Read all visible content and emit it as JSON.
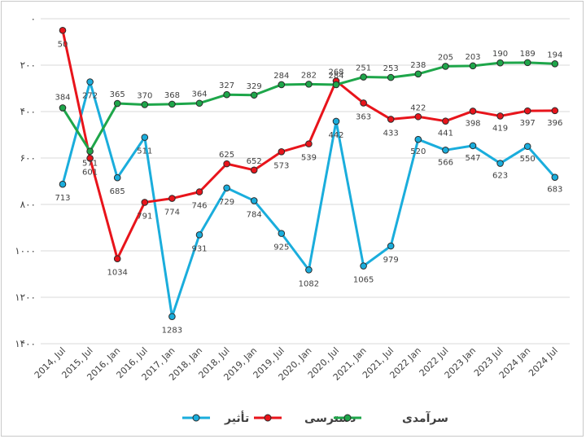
{
  "chart_data": {
    "type": "line",
    "title": "",
    "xlabel": "",
    "ylabel": "",
    "y_reversed": true,
    "ylim": [
      0,
      1400
    ],
    "yticks": [
      0,
      200,
      400,
      600,
      800,
      1000,
      1200,
      1400
    ],
    "ytick_labels": [
      "۰",
      "۲۰۰",
      "۴۰۰",
      "۶۰۰",
      "۸۰۰",
      "۱۰۰۰",
      "۱۲۰۰",
      "۱۴۰۰"
    ],
    "grid": true,
    "legend_position": "bottom",
    "categories": [
      "2014, Jul",
      "2015, Jul",
      "2016, Jan",
      "2016, Jul",
      "2017, Jan",
      "2018, Jan",
      "2018, Jul",
      "2019, Jan",
      "2019, Jul",
      "2020, Jan",
      "2020, Jul",
      "2021, Jan",
      "2021, Jul",
      "2022 Jan",
      "2022 Jul",
      "2023 Jan",
      "2023 Jul",
      "2024 Jan",
      "2024 Jul"
    ],
    "series": [
      {
        "name": "تأثیر",
        "color": "#1aaddc",
        "values": [
          713,
          272,
          685,
          511,
          1283,
          931,
          729,
          784,
          925,
          1082,
          442,
          1065,
          979,
          520,
          566,
          547,
          623,
          550,
          683
        ]
      },
      {
        "name": "دسترسی",
        "color": "#e8141b",
        "values": [
          50,
          601,
          1034,
          791,
          774,
          746,
          625,
          652,
          573,
          539,
          268,
          363,
          433,
          422,
          441,
          398,
          419,
          397,
          396
        ]
      },
      {
        "name": "سرآمدی",
        "color": "#1ea64a",
        "values": [
          384,
          571,
          365,
          370,
          368,
          364,
          327,
          329,
          284,
          282,
          284,
          251,
          253,
          238,
          205,
          203,
          190,
          189,
          194
        ]
      }
    ]
  }
}
